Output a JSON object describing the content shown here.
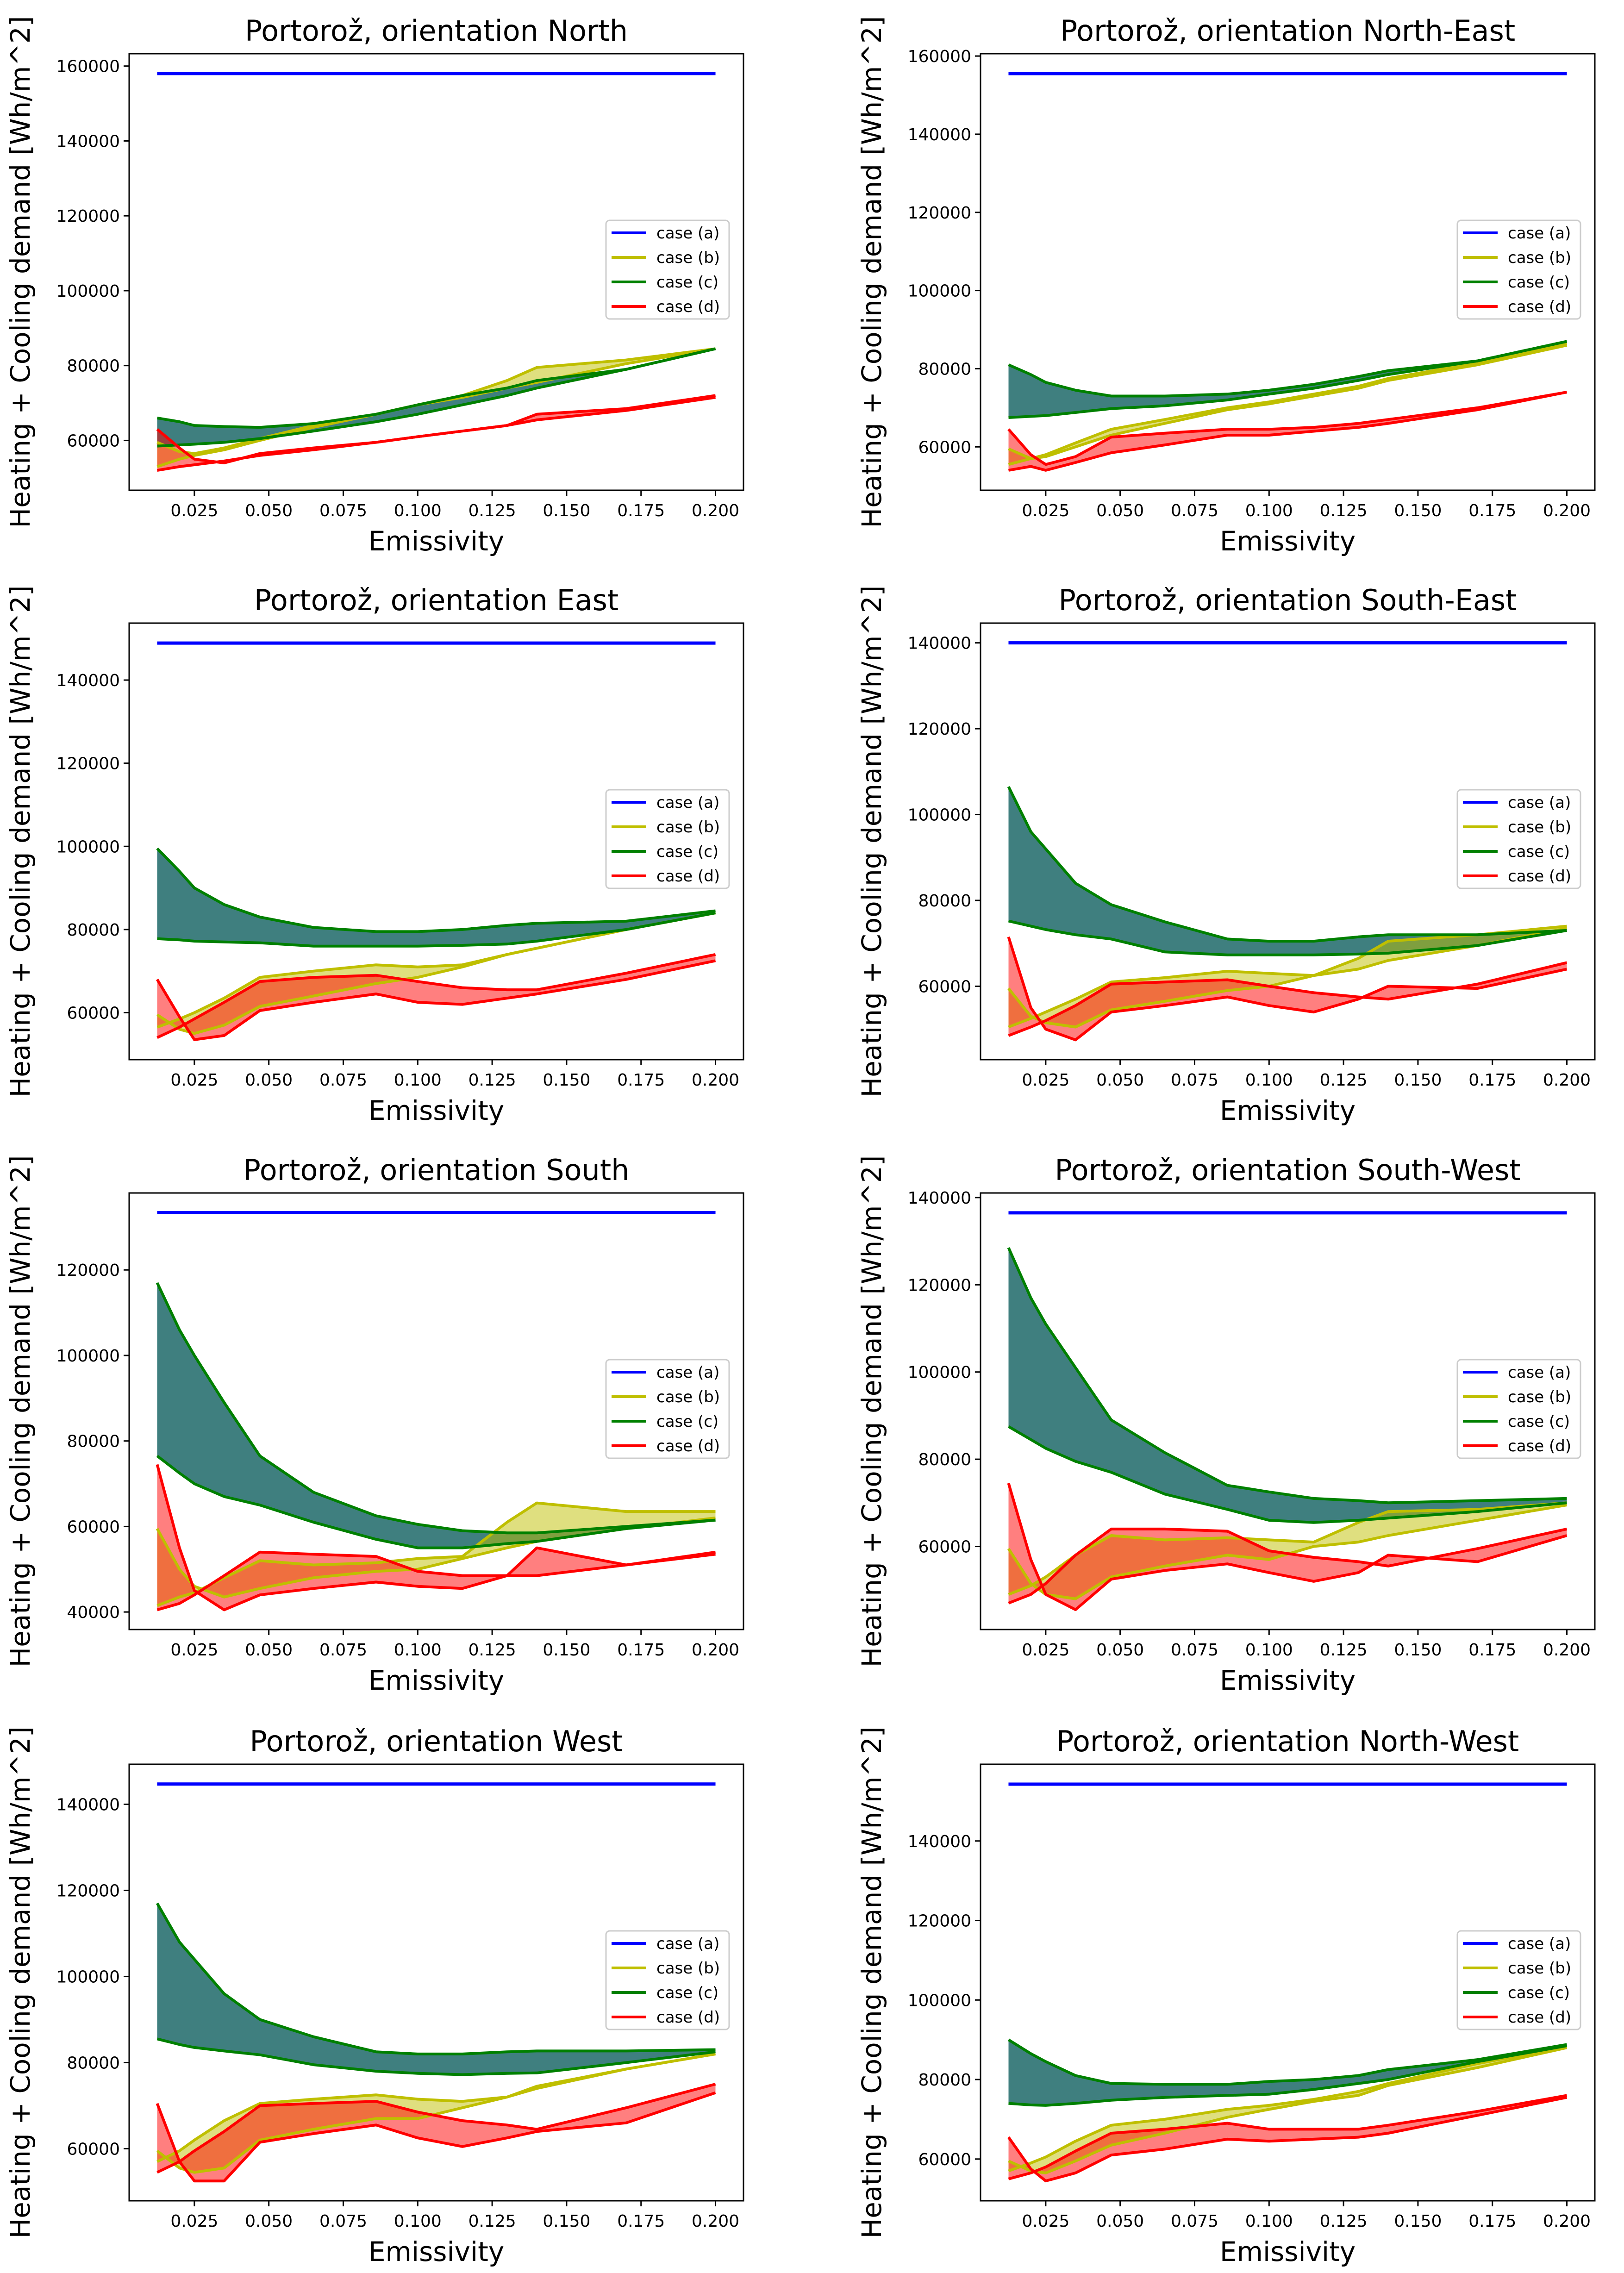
{
  "figure": {
    "legend_labels": [
      "case (a)",
      "case (b)",
      "case (c)",
      "case (d)"
    ]
  },
  "colors": {
    "case_a": "#0000ff",
    "case_b": "#bfbf00",
    "case_c": "#008000",
    "case_d": "#ff0000",
    "fill_b": "#bfbf00",
    "fill_c": "#3f7f7f",
    "fill_d": "#ff0000"
  },
  "chart_data": [
    {
      "type": "area",
      "title": "Portorož, orientation North",
      "xlabel": "Emissivity",
      "ylabel": "Heating + Cooling demand [Wh/m^2]",
      "xlim": [
        0.0031,
        0.2094
      ],
      "ylim": [
        46700,
        163300
      ],
      "legend": "center-right",
      "x_tick_labels": [
        "0.025",
        "0.050",
        "0.075",
        "0.100",
        "0.125",
        "0.150",
        "0.175",
        "0.200"
      ],
      "x": [
        0.0125,
        0.02,
        0.025,
        0.035,
        0.047,
        0.065,
        0.086,
        0.1,
        0.115,
        0.13,
        0.14,
        0.17,
        0.2
      ],
      "case_a": 158000,
      "case_b": [
        [
          59500,
          57000,
          56500,
          58000,
          60500,
          64000,
          67000,
          69500,
          72000,
          76000,
          79500,
          81500,
          84500
        ],
        [
          53000,
          55000,
          56000,
          57500,
          60000,
          63500,
          67000,
          69500,
          71500,
          74000,
          75500,
          80500,
          84500
        ]
      ],
      "case_c": [
        [
          66000,
          65000,
          64000,
          63700,
          63500,
          64500,
          67000,
          69500,
          72000,
          74000,
          76000,
          79000,
          84500
        ],
        [
          58500,
          58800,
          59000,
          59500,
          60500,
          62500,
          65000,
          67000,
          69500,
          72000,
          74000,
          79000,
          84500
        ]
      ],
      "case_d": [
        [
          63000,
          58000,
          55000,
          54000,
          56500,
          58000,
          59500,
          61000,
          62500,
          64000,
          67000,
          68500,
          72000
        ],
        [
          52000,
          53000,
          53500,
          54500,
          56000,
          57500,
          59500,
          61000,
          62500,
          64000,
          65500,
          68000,
          71500
        ]
      ]
    },
    {
      "type": "area",
      "title": "Portorož, orientation North-East",
      "xlabel": "Emissivity",
      "ylabel": "Heating + Cooling demand [Wh/m^2]",
      "xlim": [
        0.0031,
        0.2094
      ],
      "ylim": [
        48900,
        160600
      ],
      "legend": "center-right",
      "x_tick_labels": [
        "0.025",
        "0.050",
        "0.075",
        "0.100",
        "0.125",
        "0.150",
        "0.175",
        "0.200"
      ],
      "x": [
        0.0125,
        0.02,
        0.025,
        0.035,
        0.047,
        0.065,
        0.086,
        0.1,
        0.115,
        0.13,
        0.14,
        0.17,
        0.2
      ],
      "case_a": 155500,
      "case_b": [
        [
          59500,
          57000,
          58000,
          61000,
          64500,
          67000,
          70000,
          71500,
          73500,
          75500,
          77500,
          81500,
          86500
        ],
        [
          55500,
          57000,
          57500,
          60000,
          63000,
          66000,
          69500,
          71000,
          73000,
          75000,
          77000,
          81000,
          86000
        ]
      ],
      "case_c": [
        [
          81000,
          78500,
          76500,
          74500,
          73000,
          73000,
          73500,
          74500,
          76000,
          78000,
          79500,
          82000,
          87000
        ],
        [
          67500,
          67800,
          68000,
          68800,
          69800,
          70500,
          72000,
          73500,
          75000,
          77000,
          78500,
          82000,
          87000
        ]
      ],
      "case_d": [
        [
          64500,
          58000,
          55500,
          57500,
          62500,
          63500,
          64500,
          64500,
          65000,
          66000,
          67000,
          70000,
          74000
        ],
        [
          54000,
          55000,
          54000,
          56000,
          58500,
          60500,
          63000,
          63000,
          64000,
          65000,
          66000,
          69500,
          74000
        ]
      ]
    },
    {
      "type": "area",
      "title": "Portorož, orientation East",
      "xlabel": "Emissivity",
      "ylabel": "Heating + Cooling demand [Wh/m^2]",
      "xlim": [
        0.0031,
        0.2094
      ],
      "ylim": [
        48700,
        153700
      ],
      "legend": "center-right",
      "x_tick_labels": [
        "0.025",
        "0.050",
        "0.075",
        "0.100",
        "0.125",
        "0.150",
        "0.175",
        "0.200"
      ],
      "x": [
        0.0125,
        0.02,
        0.025,
        0.035,
        0.047,
        0.065,
        0.086,
        0.1,
        0.115,
        0.13,
        0.14,
        0.17,
        0.2
      ],
      "case_a": 148900,
      "case_b": [
        [
          59500,
          56000,
          55000,
          57000,
          61500,
          64000,
          67000,
          68500,
          71000,
          74000,
          75500,
          80000,
          84000
        ],
        [
          56500,
          58500,
          60000,
          63500,
          68500,
          70000,
          71500,
          71000,
          71500,
          74000,
          75500,
          80000,
          84000
        ]
      ],
      "case_c": [
        [
          99500,
          94000,
          90000,
          86000,
          83000,
          80500,
          79500,
          79500,
          80000,
          81000,
          81500,
          82000,
          84500
        ],
        [
          77800,
          77500,
          77200,
          77000,
          76800,
          76000,
          76000,
          76000,
          76200,
          76500,
          77200,
          80000,
          84000
        ]
      ],
      "case_d": [
        [
          68000,
          59000,
          53500,
          54500,
          60500,
          62500,
          64500,
          62500,
          62000,
          63500,
          64500,
          68000,
          72500
        ],
        [
          54000,
          56500,
          58500,
          62500,
          67500,
          68500,
          69000,
          67500,
          66000,
          65500,
          65500,
          69500,
          74000
        ]
      ]
    },
    {
      "type": "area",
      "title": "Portorož, orientation South-East",
      "xlabel": "Emissivity",
      "ylabel": "Heating + Cooling demand [Wh/m^2]",
      "xlim": [
        0.0031,
        0.2094
      ],
      "ylim": [
        42900,
        144600
      ],
      "legend": "center-right",
      "x_tick_labels": [
        "0.025",
        "0.050",
        "0.075",
        "0.100",
        "0.125",
        "0.150",
        "0.175",
        "0.200"
      ],
      "x": [
        0.0125,
        0.02,
        0.025,
        0.035,
        0.047,
        0.065,
        0.086,
        0.1,
        0.115,
        0.13,
        0.14,
        0.17,
        0.2
      ],
      "case_a": 140000,
      "case_b": [
        [
          59500,
          53000,
          51500,
          50500,
          54500,
          56500,
          59000,
          60000,
          62500,
          64000,
          66000,
          69500,
          73500
        ],
        [
          50500,
          52500,
          54000,
          57000,
          61000,
          62000,
          63500,
          63000,
          62500,
          66500,
          70500,
          72000,
          74000
        ]
      ],
      "case_c": [
        [
          106500,
          96000,
          92000,
          84000,
          79000,
          75000,
          71000,
          70500,
          70500,
          71500,
          72000,
          72000,
          73000
        ],
        [
          75200,
          74000,
          73200,
          72000,
          71000,
          68000,
          67300,
          67300,
          67300,
          67500,
          67700,
          69500,
          73000
        ]
      ],
      "case_d": [
        [
          71500,
          55000,
          50000,
          47500,
          54000,
          55500,
          57500,
          55500,
          54000,
          57000,
          60000,
          59500,
          64000
        ],
        [
          48500,
          50500,
          52000,
          55500,
          60500,
          61000,
          61500,
          60000,
          58500,
          57500,
          57000,
          60500,
          65500
        ]
      ]
    },
    {
      "type": "area",
      "title": "Portorož, orientation South",
      "xlabel": "Emissivity",
      "ylabel": "Heating + Cooling demand [Wh/m^2]",
      "xlim": [
        0.0031,
        0.2094
      ],
      "ylim": [
        35900,
        138000
      ],
      "legend": "center-right",
      "x_tick_labels": [
        "0.025",
        "0.050",
        "0.075",
        "0.100",
        "0.125",
        "0.150",
        "0.175",
        "0.200"
      ],
      "x": [
        0.0125,
        0.02,
        0.025,
        0.035,
        0.047,
        0.065,
        0.086,
        0.1,
        0.115,
        0.13,
        0.14,
        0.17,
        0.2
      ],
      "case_a": 133400,
      "case_b": [
        [
          59500,
          50000,
          46000,
          43500,
          45500,
          48000,
          49500,
          50000,
          52500,
          55000,
          56500,
          59500,
          62000
        ],
        [
          41500,
          43500,
          44500,
          48000,
          52000,
          51000,
          51500,
          52500,
          53000,
          61000,
          65500,
          63500,
          63500
        ]
      ],
      "case_c": [
        [
          117000,
          106000,
          100000,
          89000,
          76500,
          68000,
          62500,
          60500,
          59000,
          58500,
          58500,
          60000,
          61500
        ],
        [
          76500,
          72500,
          70000,
          67000,
          65000,
          61000,
          57000,
          55000,
          55000,
          56000,
          56500,
          59500,
          61500
        ]
      ],
      "case_d": [
        [
          74500,
          55000,
          45000,
          40500,
          44000,
          45500,
          47000,
          46000,
          45500,
          48500,
          48500,
          51000,
          53500
        ],
        [
          40500,
          42000,
          44000,
          48500,
          54000,
          53500,
          53000,
          49500,
          48500,
          48500,
          55000,
          51000,
          54000
        ]
      ]
    },
    {
      "type": "area",
      "title": "Portorož, orientation South-West",
      "xlabel": "Emissivity",
      "ylabel": "Heating + Cooling demand [Wh/m^2]",
      "xlim": [
        0.0031,
        0.2094
      ],
      "ylim": [
        40950,
        141050
      ],
      "legend": "center-right",
      "x_tick_labels": [
        "0.025",
        "0.050",
        "0.075",
        "0.100",
        "0.125",
        "0.150",
        "0.175",
        "0.200"
      ],
      "x": [
        0.0125,
        0.02,
        0.025,
        0.035,
        0.047,
        0.065,
        0.086,
        0.1,
        0.115,
        0.13,
        0.14,
        0.17,
        0.2
      ],
      "case_a": 136500,
      "case_b": [
        [
          59500,
          51500,
          49000,
          48000,
          53000,
          55500,
          58000,
          57000,
          60000,
          61000,
          62500,
          66000,
          69500
        ],
        [
          49000,
          51000,
          53000,
          58000,
          62500,
          61500,
          62000,
          61500,
          61000,
          65500,
          68000,
          68500,
          70000
        ]
      ],
      "case_c": [
        [
          128500,
          117000,
          111000,
          101000,
          89000,
          81500,
          74000,
          72500,
          71000,
          70500,
          70000,
          70500,
          71000
        ],
        [
          87500,
          84500,
          82500,
          79500,
          77000,
          72000,
          68500,
          66000,
          65500,
          66000,
          66500,
          68000,
          70000
        ]
      ],
      "case_d": [
        [
          74500,
          57000,
          49000,
          45500,
          52500,
          54500,
          56000,
          54000,
          52000,
          54000,
          58000,
          56500,
          62500
        ],
        [
          47000,
          49000,
          51500,
          58000,
          64000,
          64000,
          63500,
          59000,
          57500,
          56500,
          55500,
          59500,
          64000
        ]
      ]
    },
    {
      "type": "area",
      "title": "Portorož, orientation West",
      "xlabel": "Emissivity",
      "ylabel": "Heating + Cooling demand [Wh/m^2]",
      "xlim": [
        0.0031,
        0.2094
      ],
      "ylim": [
        47900,
        149300
      ],
      "legend": "center-right",
      "x_tick_labels": [
        "0.025",
        "0.050",
        "0.075",
        "0.100",
        "0.125",
        "0.150",
        "0.175",
        "0.200"
      ],
      "x": [
        0.0125,
        0.02,
        0.025,
        0.035,
        0.047,
        0.065,
        0.086,
        0.1,
        0.115,
        0.13,
        0.14,
        0.17,
        0.2
      ],
      "case_a": 144700,
      "case_b": [
        [
          59500,
          55500,
          54500,
          55500,
          62000,
          64500,
          67000,
          67000,
          69500,
          72000,
          74000,
          78500,
          82000
        ],
        [
          57000,
          59500,
          62000,
          66500,
          70500,
          71500,
          72500,
          71500,
          71000,
          72000,
          74500,
          78500,
          82000
        ]
      ],
      "case_c": [
        [
          117000,
          108000,
          104000,
          96000,
          90000,
          86000,
          82500,
          82000,
          82000,
          82500,
          82700,
          82700,
          83000
        ],
        [
          85500,
          84200,
          83500,
          82700,
          81800,
          79500,
          78000,
          77500,
          77200,
          77500,
          77600,
          80000,
          82500
        ]
      ],
      "case_d": [
        [
          70500,
          57000,
          52500,
          52500,
          61500,
          63500,
          65500,
          62500,
          60500,
          62500,
          64000,
          66000,
          73000
        ],
        [
          54500,
          57000,
          59500,
          64000,
          70000,
          70500,
          71000,
          68500,
          66500,
          65500,
          64500,
          69500,
          75000
        ]
      ]
    },
    {
      "type": "area",
      "title": "Portorož, orientation North-West",
      "xlabel": "Emissivity",
      "ylabel": "Heating + Cooling demand [Wh/m^2]",
      "xlim": [
        0.0031,
        0.2094
      ],
      "ylim": [
        49500,
        159300
      ],
      "legend": "center-right",
      "x_tick_labels": [
        "0.025",
        "0.050",
        "0.075",
        "0.100",
        "0.125",
        "0.150",
        "0.175",
        "0.200"
      ],
      "x": [
        0.0125,
        0.02,
        0.025,
        0.035,
        0.047,
        0.065,
        0.086,
        0.1,
        0.115,
        0.13,
        0.14,
        0.17,
        0.2
      ],
      "case_a": 154300,
      "case_b": [
        [
          59500,
          57000,
          56500,
          59500,
          63500,
          66500,
          70500,
          72500,
          74500,
          76000,
          78500,
          83000,
          88000
        ],
        [
          57000,
          59000,
          60500,
          64500,
          68500,
          70000,
          72500,
          73500,
          75000,
          77000,
          79000,
          84000,
          88200
        ]
      ],
      "case_c": [
        [
          90000,
          86500,
          84500,
          81000,
          79000,
          78800,
          78800,
          79500,
          80000,
          81000,
          82500,
          85000,
          88800
        ],
        [
          74000,
          73600,
          73500,
          74000,
          74800,
          75500,
          76000,
          76300,
          77500,
          79000,
          80000,
          84500,
          88500
        ]
      ],
      "case_d": [
        [
          65500,
          57500,
          54500,
          56500,
          61000,
          62500,
          65000,
          64500,
          65000,
          65500,
          66500,
          71000,
          75500
        ],
        [
          55000,
          56500,
          58000,
          62000,
          66500,
          67500,
          69000,
          67500,
          67500,
          67500,
          68500,
          72000,
          76000
        ]
      ]
    }
  ]
}
